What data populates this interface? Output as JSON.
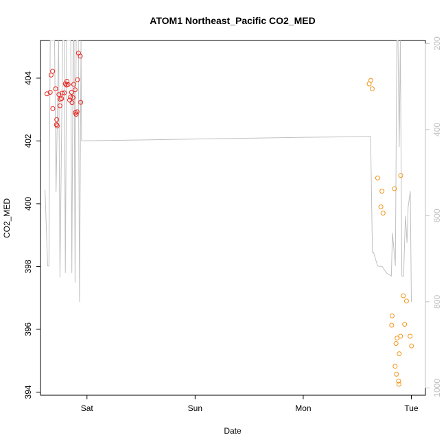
{
  "chart_data": {
    "type": "scatter",
    "title": "ATOM1 Northeast_Pacific CO2_MED",
    "xlabel": "Date",
    "ylabel": "CO2_MED",
    "x_ticks": [
      "Sat",
      "Sun",
      "Mon",
      "Tue"
    ],
    "x_tick_values": [
      1,
      2,
      3,
      4
    ],
    "xlim": [
      0.57,
      4.13
    ],
    "y_left": {
      "lim": [
        393.9,
        405.2
      ],
      "ticks": [
        394,
        396,
        398,
        400,
        402,
        404
      ]
    },
    "y_right": {
      "label": "",
      "lim": [
        1017,
        193
      ],
      "ticks": [
        200,
        400,
        600,
        800,
        1000
      ],
      "color": "#c0c0c0"
    },
    "colors": {
      "series1": "#e8221c",
      "series2": "#f39416",
      "line": "#c0c0c0",
      "axis": "#000000"
    },
    "series": [
      {
        "color": "#e8221c",
        "points": [
          [
            0.63,
            403.5
          ],
          [
            0.66,
            403.55
          ],
          [
            0.668,
            404.1
          ],
          [
            0.682,
            404.22
          ],
          [
            0.684,
            403.03
          ],
          [
            0.71,
            403.66
          ],
          [
            0.718,
            402.52
          ],
          [
            0.725,
            402.48
          ],
          [
            0.72,
            402.68
          ],
          [
            0.74,
            403.48
          ],
          [
            0.75,
            403.12
          ],
          [
            0.752,
            403.33
          ],
          [
            0.765,
            403.35
          ],
          [
            0.77,
            403.52
          ],
          [
            0.79,
            403.53
          ],
          [
            0.8,
            403.82
          ],
          [
            0.812,
            403.78
          ],
          [
            0.815,
            403.9
          ],
          [
            0.825,
            403.8
          ],
          [
            0.84,
            403.3
          ],
          [
            0.848,
            403.4
          ],
          [
            0.858,
            403.55
          ],
          [
            0.862,
            403.22
          ],
          [
            0.87,
            403.38
          ],
          [
            0.878,
            403.8
          ],
          [
            0.89,
            403.63
          ],
          [
            0.892,
            402.9
          ],
          [
            0.9,
            402.85
          ],
          [
            0.908,
            402.93
          ],
          [
            0.912,
            403.95
          ],
          [
            0.921,
            404.8
          ],
          [
            0.938,
            404.7
          ],
          [
            0.942,
            403.23
          ]
        ]
      },
      {
        "color": "#f39416",
        "points": [
          [
            3.61,
            403.82
          ],
          [
            3.625,
            403.93
          ],
          [
            3.638,
            403.66
          ],
          [
            3.688,
            400.82
          ],
          [
            3.718,
            399.9
          ],
          [
            3.728,
            400.4
          ],
          [
            3.738,
            399.7
          ],
          [
            3.818,
            396.13
          ],
          [
            3.822,
            396.43
          ],
          [
            3.844,
            400.48
          ],
          [
            3.85,
            394.82
          ],
          [
            3.858,
            395.55
          ],
          [
            3.862,
            394.57
          ],
          [
            3.868,
            395.72
          ],
          [
            3.882,
            394.35
          ],
          [
            3.885,
            394.25
          ],
          [
            3.888,
            395.22
          ],
          [
            3.9,
            395.78
          ],
          [
            3.902,
            400.9
          ],
          [
            3.925,
            397.07
          ],
          [
            3.938,
            396.16
          ],
          [
            3.955,
            396.9
          ],
          [
            3.988,
            395.78
          ],
          [
            4.002,
            395.47
          ]
        ]
      }
    ],
    "line_series": {
      "axis": "right",
      "points": [
        [
          0.612,
          540
        ],
        [
          0.636,
          717
        ],
        [
          0.648,
          717
        ],
        [
          0.66,
          193
        ],
        [
          0.7,
          193
        ],
        [
          0.714,
          545
        ],
        [
          0.738,
          193
        ],
        [
          0.75,
          743
        ],
        [
          0.775,
          193
        ],
        [
          0.79,
          193
        ],
        [
          0.8,
          733
        ],
        [
          0.812,
          193
        ],
        [
          0.85,
          193
        ],
        [
          0.86,
          733
        ],
        [
          0.872,
          193
        ],
        [
          0.88,
          193
        ],
        [
          0.89,
          755
        ],
        [
          0.9,
          193
        ],
        [
          0.92,
          193
        ],
        [
          0.931,
          800
        ],
        [
          0.945,
          193
        ],
        [
          0.95,
          426
        ],
        [
          1.5,
          424
        ],
        [
          2.0,
          422
        ],
        [
          2.5,
          420
        ],
        [
          3.0,
          418
        ],
        [
          3.623,
          416
        ],
        [
          3.64,
          685
        ],
        [
          3.65,
          685
        ],
        [
          3.688,
          717
        ],
        [
          3.73,
          718
        ],
        [
          3.77,
          733
        ],
        [
          3.815,
          740
        ],
        [
          3.825,
          640
        ],
        [
          3.852,
          717
        ],
        [
          3.866,
          193
        ],
        [
          3.876,
          193
        ],
        [
          3.888,
          440
        ],
        [
          3.898,
          193
        ],
        [
          3.912,
          740
        ],
        [
          3.928,
          740
        ],
        [
          3.945,
          600
        ],
        [
          3.96,
          663
        ],
        [
          3.97,
          580
        ],
        [
          3.99,
          543
        ],
        [
          4.0,
          800
        ]
      ]
    }
  }
}
